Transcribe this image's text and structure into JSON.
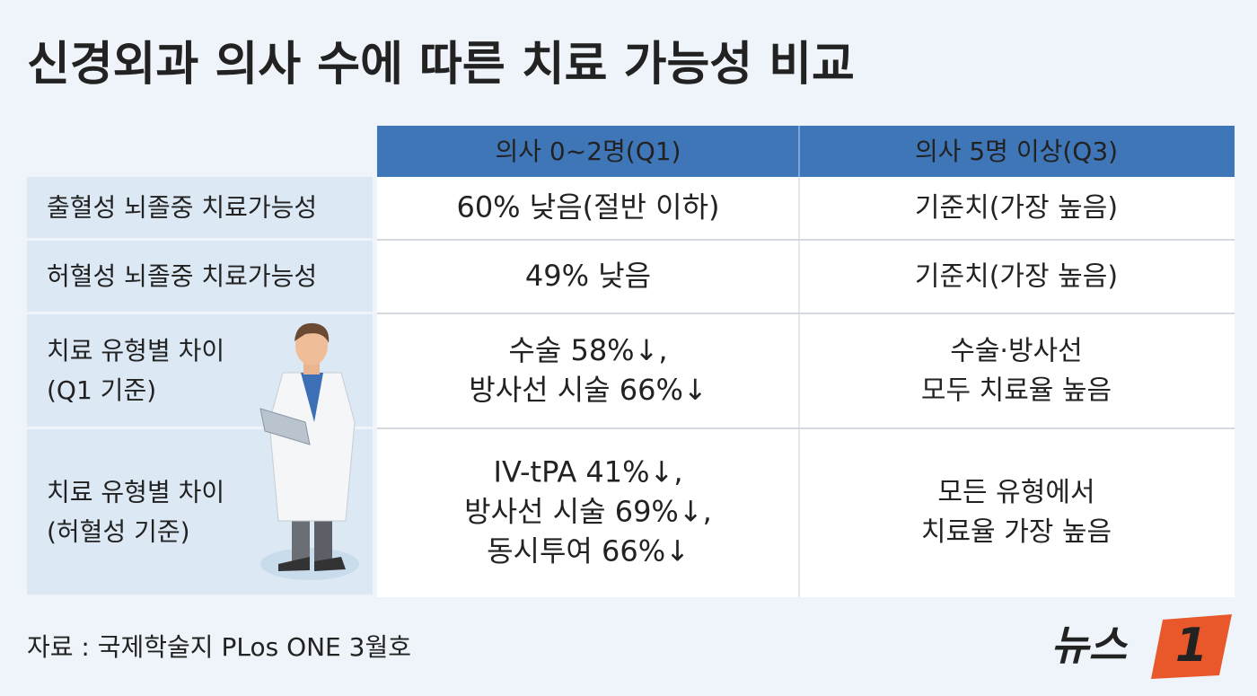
{
  "title": "신경외과 의사 수에 따른 치료 가능성 비교",
  "table": {
    "header": [
      "의사 0~2명(Q1)",
      "의사 5명 이상(Q3)"
    ],
    "rows": [
      {
        "label": [
          "출혈성 뇌졸중 치료가능성"
        ],
        "cells": [
          [
            "60% 낮음(절반 이하)"
          ],
          [
            "기준치(가장 높음)"
          ]
        ]
      },
      {
        "label": [
          "허혈성 뇌졸중 치료가능성"
        ],
        "cells": [
          [
            "49% 낮음"
          ],
          [
            "기준치(가장 높음)"
          ]
        ]
      },
      {
        "label": [
          "치료 유형별 차이",
          "(Q1 기준)"
        ],
        "cells": [
          [
            "수술 58%↓,",
            "방사선 시술 66%↓"
          ],
          [
            "수술·방사선",
            "모두 치료율 높음"
          ]
        ]
      },
      {
        "label": [
          "치료 유형별 차이",
          "(허혈성 기준)"
        ],
        "cells": [
          [
            "IV-tPA 41%↓,",
            "방사선 시술 69%↓,",
            "동시투여 66%↓"
          ],
          [
            "모든 유형에서",
            "치료율 가장 높음"
          ]
        ]
      }
    ]
  },
  "source": "자료 : 국제학술지 PLos ONE 3월호",
  "logo": {
    "text": "뉴스",
    "number": "1"
  }
}
